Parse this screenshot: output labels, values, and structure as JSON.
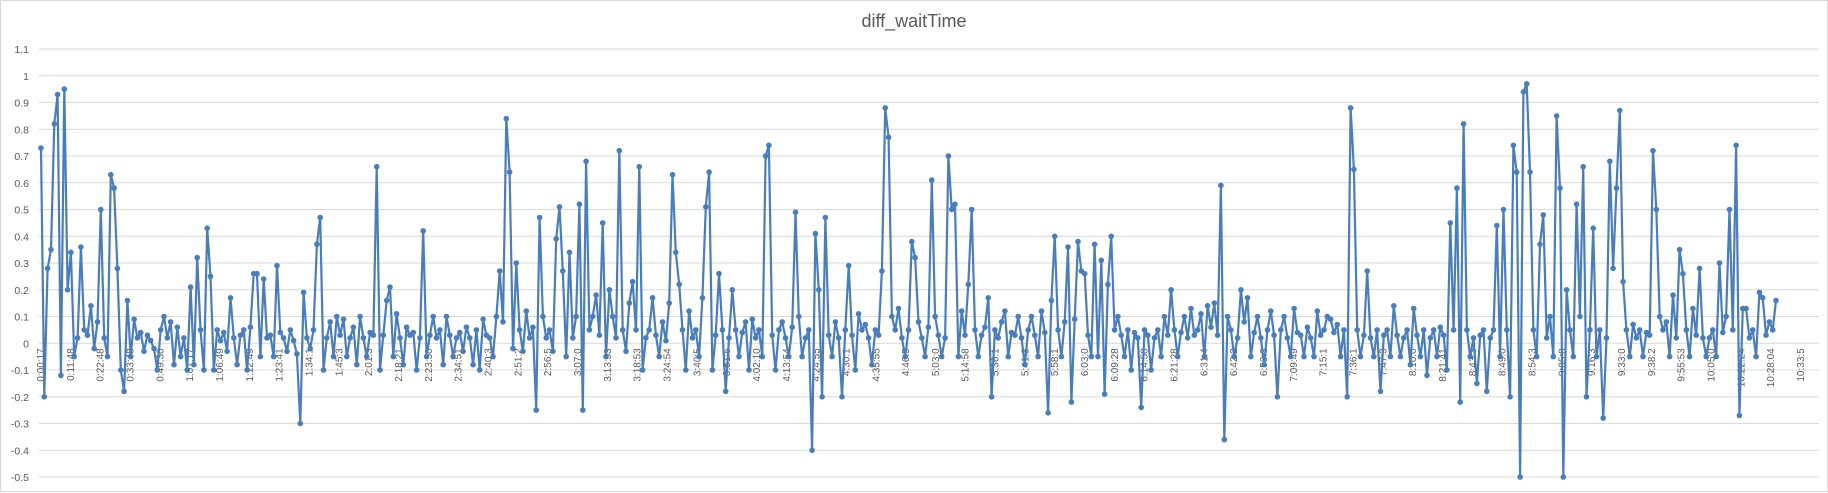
{
  "chart_data": {
    "type": "line",
    "title": "diff_waitTime",
    "xlabel": "",
    "ylabel": "",
    "ylim": [
      -0.5,
      1.1
    ],
    "ystep": 0.1,
    "y_tick_labels": [
      "1.1",
      "1",
      "0.9",
      "0.8",
      "0.7",
      "0.6",
      "0.5",
      "0.4",
      "0.3",
      "0.2",
      "0.1",
      "0",
      "-0.1",
      "-0.2",
      "-0.3",
      "-0.4",
      "-0.5"
    ],
    "grid": true,
    "legend": "none",
    "series_color": "#4a7ebb",
    "x_tick_labels": [
      "0:00:17",
      "0:11:48",
      "0:22:48",
      "0:33:48",
      "0:49:30",
      "1:01:17",
      "1:06:49",
      "1:12:49",
      "1:23:41",
      "1:34:1",
      "1:45:3",
      "2:01:3",
      "2:18:21",
      "2:23:50",
      "2:34:51",
      "2:40:3",
      "2:51:2",
      "2:56:5",
      "3:07:0",
      "3:13:53",
      "3:18:53",
      "3:24:54",
      "3:40:5",
      "3:51:5",
      "4:02:10",
      "4:13:54",
      "4:24:55",
      "4:30:1",
      "4:35:55",
      "4:46:5",
      "5:03:0",
      "5:14:58",
      "5:36:1",
      "5:41:3",
      "5:58:1",
      "6:03:0",
      "6:09:28",
      "6:14:58",
      "6:21:28",
      "6:31:4",
      "6:42:2",
      "6:53:3",
      "7:09:49",
      "7:15:1",
      "7:36:1",
      "7:47:3",
      "8:10:0",
      "8:21:41",
      "8:43:3",
      "8:49:0",
      "8:54:3",
      "9:05:0",
      "9:16:3",
      "9:33:0",
      "9:38:2",
      "9:55:53",
      "10:05:0",
      "10:22:24",
      "10:28:04",
      "10:33:5"
    ],
    "values": [
      0.73,
      -0.2,
      0.28,
      0.35,
      0.82,
      0.93,
      -0.12,
      0.95,
      0.2,
      0.34,
      -0.05,
      0.02,
      0.36,
      0.05,
      0.03,
      0.14,
      -0.02,
      0.08,
      0.5,
      0.02,
      -0.05,
      0.63,
      0.58,
      0.28,
      -0.1,
      -0.18,
      0.16,
      -0.05,
      0.09,
      0.02,
      0.04,
      -0.03,
      0.03,
      0.01,
      -0.02,
      -0.1,
      0.05,
      0.1,
      0.02,
      0.08,
      -0.08,
      0.06,
      -0.05,
      0.02,
      -0.1,
      0.21,
      -0.08,
      0.32,
      0.05,
      -0.1,
      0.43,
      0.25,
      -0.1,
      0.05,
      0.01,
      0.04,
      -0.03,
      0.17,
      0.02,
      -0.08,
      0.03,
      0.05,
      -0.1,
      0.06,
      0.26,
      0.26,
      -0.05,
      0.24,
      0.02,
      0.03,
      -0.05,
      0.29,
      0.04,
      0.02,
      -0.03,
      0.05,
      0.01,
      -0.04,
      -0.3,
      0.19,
      0.02,
      -0.02,
      0.05,
      0.37,
      0.47,
      -0.1,
      0.02,
      0.08,
      -0.05,
      0.1,
      0.03,
      0.09,
      -0.05,
      0.02,
      0.06,
      -0.08,
      0.1,
      0.02,
      -0.05,
      0.04,
      0.03,
      0.66,
      -0.1,
      0.03,
      0.16,
      0.21,
      -0.05,
      0.11,
      0.02,
      -0.08,
      0.06,
      0.03,
      0.04,
      -0.1,
      0.02,
      0.42,
      -0.05,
      0.03,
      0.1,
      0.02,
      0.05,
      -0.08,
      0.1,
      0.03,
      -0.05,
      0.02,
      0.04,
      -0.03,
      0.06,
      0.02,
      -0.08,
      0.05,
      -0.1,
      0.09,
      0.03,
      0.02,
      -0.05,
      0.1,
      0.27,
      0.08,
      0.84,
      0.64,
      -0.02,
      0.3,
      0.05,
      -0.03,
      0.12,
      0.02,
      0.06,
      -0.25,
      0.47,
      0.1,
      0.02,
      0.05,
      -0.03,
      0.39,
      0.51,
      0.27,
      -0.05,
      0.34,
      0.02,
      0.1,
      0.52,
      -0.25,
      0.68,
      0.05,
      0.1,
      0.18,
      0.03,
      0.45,
      -0.05,
      0.2,
      0.1,
      0.02,
      0.72,
      0.05,
      -0.03,
      0.15,
      0.23,
      0.05,
      0.66,
      -0.1,
      0.02,
      0.05,
      0.17,
      0.03,
      -0.05,
      0.08,
      0.01,
      0.15,
      0.63,
      0.34,
      0.22,
      0.05,
      -0.1,
      0.12,
      0.02,
      0.05,
      -0.05,
      0.17,
      0.51,
      0.64,
      -0.1,
      0.03,
      0.26,
      0.05,
      -0.18,
      0.02,
      0.2,
      0.05,
      -0.05,
      0.04,
      0.08,
      -0.1,
      0.09,
      0.02,
      0.05,
      -0.05,
      0.7,
      0.74,
      0.03,
      -0.1,
      0.05,
      0.08,
      0.02,
      -0.05,
      0.06,
      0.49,
      0.1,
      -0.05,
      0.02,
      0.05,
      -0.4,
      0.41,
      0.2,
      -0.2,
      0.47,
      0.03,
      -0.05,
      0.08,
      0.02,
      -0.2,
      0.05,
      0.29,
      0.03,
      -0.1,
      0.11,
      0.05,
      0.07,
      0.02,
      -0.08,
      0.05,
      0.03,
      0.27,
      0.88,
      0.77,
      0.1,
      0.05,
      0.13,
      0.02,
      -0.05,
      0.05,
      0.38,
      0.32,
      0.08,
      0.02,
      -0.05,
      0.06,
      0.61,
      0.1,
      0.03,
      -0.05,
      0.02,
      0.7,
      0.5,
      0.52,
      -0.05,
      0.12,
      0.03,
      0.22,
      0.5,
      0.05,
      -0.05,
      0.03,
      0.06,
      0.17,
      -0.2,
      0.05,
      0.02,
      0.08,
      0.12,
      -0.05,
      0.04,
      0.03,
      0.1,
      0.02,
      -0.08,
      0.05,
      0.1,
      0.03,
      -0.05,
      0.12,
      0.04,
      -0.26,
      0.16,
      0.4,
      0.05,
      -0.05,
      0.08,
      0.36,
      -0.22,
      0.09,
      0.38,
      0.27,
      0.26,
      0.03,
      -0.05,
      0.37,
      -0.05,
      0.31,
      -0.19,
      0.22,
      0.4,
      0.05,
      0.1,
      0.03,
      -0.05,
      0.05,
      -0.1,
      0.04,
      0.02,
      -0.24,
      0.05,
      0.03,
      -0.1,
      0.02,
      0.05,
      -0.05,
      0.1,
      0.03,
      0.2,
      0.05,
      -0.05,
      0.04,
      0.1,
      0.02,
      0.13,
      0.03,
      0.05,
      0.11,
      -0.05,
      0.14,
      0.06,
      0.15,
      0.03,
      0.59,
      -0.36,
      0.1,
      0.05,
      -0.05,
      0.02,
      0.2,
      0.08,
      0.17,
      -0.05,
      0.04,
      0.1,
      0.02,
      -0.08,
      0.05,
      0.12,
      0.03,
      -0.2,
      0.05,
      0.1,
      0.02,
      -0.05,
      0.13,
      0.04,
      0.03,
      -0.05,
      0.06,
      0.02,
      -0.05,
      0.12,
      0.03,
      0.05,
      0.1,
      0.09,
      0.04,
      0.07,
      -0.05,
      0.05,
      -0.2,
      0.88,
      0.65,
      0.05,
      -0.05,
      0.03,
      0.27,
      0.02,
      -0.05,
      0.05,
      -0.18,
      0.03,
      0.05,
      -0.05,
      0.14,
      0.03,
      -0.05,
      0.02,
      0.05,
      -0.08,
      0.13,
      0.03,
      -0.05,
      0.05,
      -0.12,
      0.02,
      0.05,
      -0.05,
      0.06,
      0.03,
      -0.1,
      0.45,
      0.05,
      0.58,
      -0.22,
      0.82,
      0.05,
      -0.05,
      0.02,
      -0.15,
      0.03,
      0.05,
      -0.18,
      0.02,
      0.05,
      0.44,
      -0.05,
      0.5,
      0.05,
      -0.2,
      0.74,
      0.64,
      -0.5,
      0.94,
      0.97,
      0.64,
      0.05,
      -0.05,
      0.37,
      0.48,
      0.02,
      0.1,
      -0.05,
      0.85,
      0.58,
      -0.5,
      0.2,
      0.05,
      -0.05,
      0.52,
      0.1,
      0.66,
      -0.2,
      0.05,
      0.43,
      -0.05,
      0.05,
      -0.28,
      0.02,
      0.68,
      0.28,
      0.58,
      0.87,
      0.23,
      0.05,
      -0.05,
      0.07,
      0.02,
      0.05,
      -0.05,
      0.04,
      0.03,
      0.72,
      0.5,
      0.1,
      0.05,
      0.08,
      -0.05,
      0.18,
      0.02,
      0.35,
      0.26,
      0.05,
      -0.05,
      0.13,
      0.03,
      0.28,
      0.02,
      -0.05,
      0.02,
      0.05,
      -0.05,
      0.3,
      0.04,
      0.1,
      0.5,
      0.05,
      0.74,
      -0.27,
      0.13,
      0.13,
      0.02,
      0.05,
      -0.05,
      0.19,
      0.17,
      0.03,
      0.08,
      0.05,
      0.16
    ]
  }
}
